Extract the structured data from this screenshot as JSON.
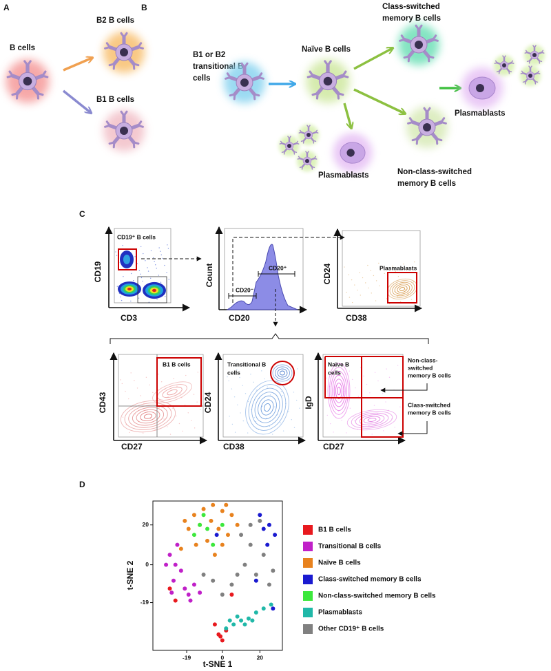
{
  "panel_a": {
    "label": "A",
    "b_cells": "B cells",
    "b2": "B2 B cells",
    "b1": "B1 B cells"
  },
  "panel_b": {
    "label": "B",
    "transitional": [
      "B1 or B2",
      "transitional B",
      "cells"
    ],
    "naive": "Naïve B cells",
    "class_switched": [
      "Class-switched",
      "memory B cells"
    ],
    "plasmablasts_right": "Plasmablasts",
    "plasmablasts_bottom": "Plasmablasts",
    "non_class_switched": [
      "Non-class-switched",
      "memory B cells"
    ]
  },
  "panel_c": {
    "label": "C",
    "plots": [
      {
        "gate": "CD19⁺ B cells",
        "y_axis": "CD19",
        "x_axis": "CD3"
      },
      {
        "y_axis": "Count",
        "x_axis": "CD20",
        "gates": [
          "CD20⁻",
          "CD20⁺"
        ]
      },
      {
        "gate": "Plasmablasts",
        "y_axis": "CD24",
        "x_axis": "CD38"
      },
      {
        "gate": "B1 B cells",
        "y_axis": "CD43",
        "x_axis": "CD27"
      },
      {
        "gate": [
          "Transitional B",
          "cells"
        ],
        "y_axis": "CD24",
        "x_axis": "CD38"
      },
      {
        "gate": [
          "Naïve B",
          "cells"
        ],
        "y_axis": "IgD",
        "x_axis": "CD27",
        "annotations": [
          [
            "Non-class-",
            "switched",
            "memory B cells"
          ],
          [
            "Class-switched",
            "memory B cells"
          ]
        ]
      }
    ]
  },
  "panel_d": {
    "label": "D",
    "type": "scatter",
    "xlabel": "t-SNE 1",
    "ylabel": "t-SNE 2",
    "xlim": [
      -37,
      32
    ],
    "ylim": [
      -43,
      32
    ],
    "xticks": [
      -19,
      0,
      20
    ],
    "yticks": [
      -19,
      0,
      20
    ],
    "series": [
      {
        "name": "B1 B cells",
        "color": "#e8191e",
        "x": [
          -2,
          0,
          2,
          -4,
          -25,
          -28,
          5,
          -1
        ],
        "y": [
          -35,
          -38,
          -33,
          -30,
          -18,
          -12,
          -15,
          -36
        ]
      },
      {
        "name": "Transitional B cells",
        "color": "#c020c8",
        "x": [
          -28,
          -25,
          -22,
          -26,
          -20,
          -18,
          -15,
          -12,
          -24,
          -30,
          -27,
          -17
        ],
        "y": [
          5,
          0,
          -3,
          -8,
          -12,
          -15,
          -10,
          -14,
          10,
          0,
          -14,
          -18
        ]
      },
      {
        "name": "Naïve B cells",
        "color": "#e8821e",
        "x": [
          -15,
          -10,
          -5,
          0,
          5,
          -18,
          -12,
          -6,
          -2,
          3,
          -8,
          -14,
          -22,
          0,
          8,
          -20,
          2,
          -4
        ],
        "y": [
          25,
          28,
          30,
          27,
          25,
          18,
          20,
          22,
          18,
          15,
          12,
          10,
          8,
          10,
          20,
          22,
          30,
          5
        ]
      },
      {
        "name": "Class-switched  memory B cells",
        "color": "#1a1ad0",
        "x": [
          20,
          25,
          28,
          22,
          18,
          27,
          -3,
          24
        ],
        "y": [
          25,
          20,
          15,
          18,
          -8,
          -22,
          15,
          10
        ]
      },
      {
        "name": "Non-class-switched  memory B cells",
        "color": "#3ce83c",
        "x": [
          -12,
          -8,
          -15,
          -10,
          -5,
          0
        ],
        "y": [
          20,
          18,
          15,
          25,
          10,
          20
        ]
      },
      {
        "name": "Plasmablasts",
        "color": "#20b8a8",
        "x": [
          2,
          6,
          10,
          14,
          18,
          22,
          26,
          8,
          12,
          16,
          4
        ],
        "y": [
          -32,
          -30,
          -28,
          -27,
          -24,
          -22,
          -20,
          -26,
          -30,
          -28,
          -28
        ]
      },
      {
        "name": "Other CD19⁺ B cells",
        "color": "#808080",
        "x": [
          10,
          15,
          12,
          8,
          5,
          18,
          22,
          -5,
          0,
          25,
          -10,
          15,
          20,
          27
        ],
        "y": [
          15,
          10,
          0,
          -5,
          -10,
          -5,
          5,
          -8,
          -15,
          -10,
          -5,
          20,
          22,
          -3
        ]
      }
    ]
  }
}
